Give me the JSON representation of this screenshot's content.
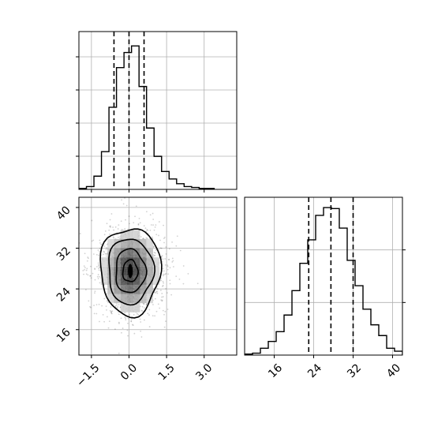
{
  "chart_data": [
    {
      "panel": "x marginal histogram",
      "type": "histogram",
      "xlim": [
        -2.0,
        4.3
      ],
      "bin_edges": [
        -2.0,
        -1.7,
        -1.4,
        -1.1,
        -0.8,
        -0.5,
        -0.2,
        0.1,
        0.4,
        0.7,
        1.0,
        1.3,
        1.6,
        1.9,
        2.2,
        2.5,
        2.8,
        3.1,
        3.4
      ],
      "counts": [
        1,
        3,
        14,
        40,
        87,
        129,
        145,
        152,
        109,
        65,
        35,
        19,
        11,
        6,
        3,
        2,
        1,
        1
      ],
      "quantiles": [
        -0.6,
        0.0,
        0.6
      ],
      "x_ticks": [
        -1.5,
        0.0,
        1.5,
        3.0
      ],
      "grid": true
    },
    {
      "panel": "y marginal histogram",
      "type": "histogram",
      "xlim": [
        10,
        42
      ],
      "bin_edges": [
        10,
        11.6,
        13.2,
        14.8,
        16.4,
        18,
        19.6,
        21.2,
        22.8,
        24.4,
        26,
        27.6,
        29.2,
        30.8,
        32.4,
        34,
        35.6,
        37.2,
        38.8,
        40.4,
        42
      ],
      "counts": [
        1,
        2,
        7,
        14,
        24,
        41,
        66,
        94,
        118,
        143,
        151,
        150,
        130,
        97,
        71,
        47,
        31,
        20,
        7,
        4
      ],
      "quantiles": [
        23.0,
        27.5,
        32.0
      ],
      "tick_labels": [
        "16",
        "24",
        "32",
        "40"
      ],
      "grid": true
    },
    {
      "panel": "2D density",
      "type": "scatter",
      "x_center": 0.05,
      "x_sd": 0.6,
      "y_center": 27.5,
      "y_sd": 4.3,
      "contour_levels": 4,
      "xlim": [
        -2.0,
        4.3
      ],
      "ylim": [
        11,
        42
      ],
      "x_tick_labels": [
        "-1.5",
        "0.0",
        "1.5",
        "3.0"
      ],
      "y_tick_labels": [
        "16",
        "24",
        "32",
        "40"
      ],
      "grid": true
    }
  ]
}
